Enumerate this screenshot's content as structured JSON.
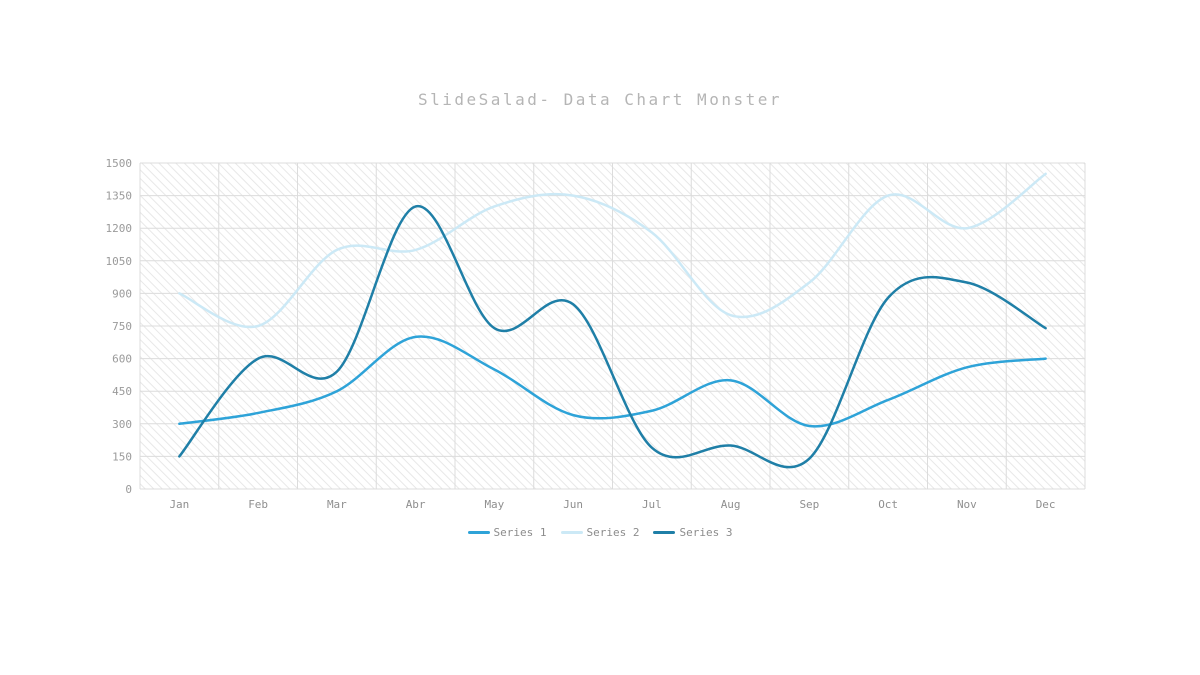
{
  "page": {
    "background": "#ffffff"
  },
  "chart_data": {
    "type": "line",
    "title": "SlideSalad- Data Chart Monster",
    "title_color": "#b5b5b5",
    "categories": [
      "Jan",
      "Feb",
      "Mar",
      "Abr",
      "May",
      "Jun",
      "Jul",
      "Aug",
      "Sep",
      "Oct",
      "Nov",
      "Dec"
    ],
    "series": [
      {
        "name": "Series 1",
        "color": "#2ea3d8",
        "values": [
          300,
          350,
          450,
          700,
          550,
          340,
          360,
          500,
          290,
          410,
          560,
          600
        ]
      },
      {
        "name": "Series 2",
        "color": "#cce9f6",
        "values": [
          900,
          750,
          1100,
          1100,
          1300,
          1350,
          1180,
          800,
          950,
          1350,
          1200,
          1450
        ]
      },
      {
        "name": "Series 3",
        "color": "#1f7fa7",
        "values": [
          150,
          600,
          540,
          1300,
          740,
          850,
          190,
          200,
          140,
          880,
          950,
          740
        ]
      }
    ],
    "ylim": [
      0,
      1500
    ],
    "yticks": [
      0,
      150,
      300,
      450,
      600,
      750,
      900,
      1050,
      1200,
      1350,
      1500
    ],
    "grid": true,
    "smooth": true,
    "plot_hatch_color": "#e8e8e8",
    "grid_line_color": "#dcdcdc",
    "axis_label_color": "#8f8f8f",
    "legend": {
      "position": "bottom",
      "entries": [
        "Series 1",
        "Series 2",
        "Series 3"
      ]
    }
  }
}
